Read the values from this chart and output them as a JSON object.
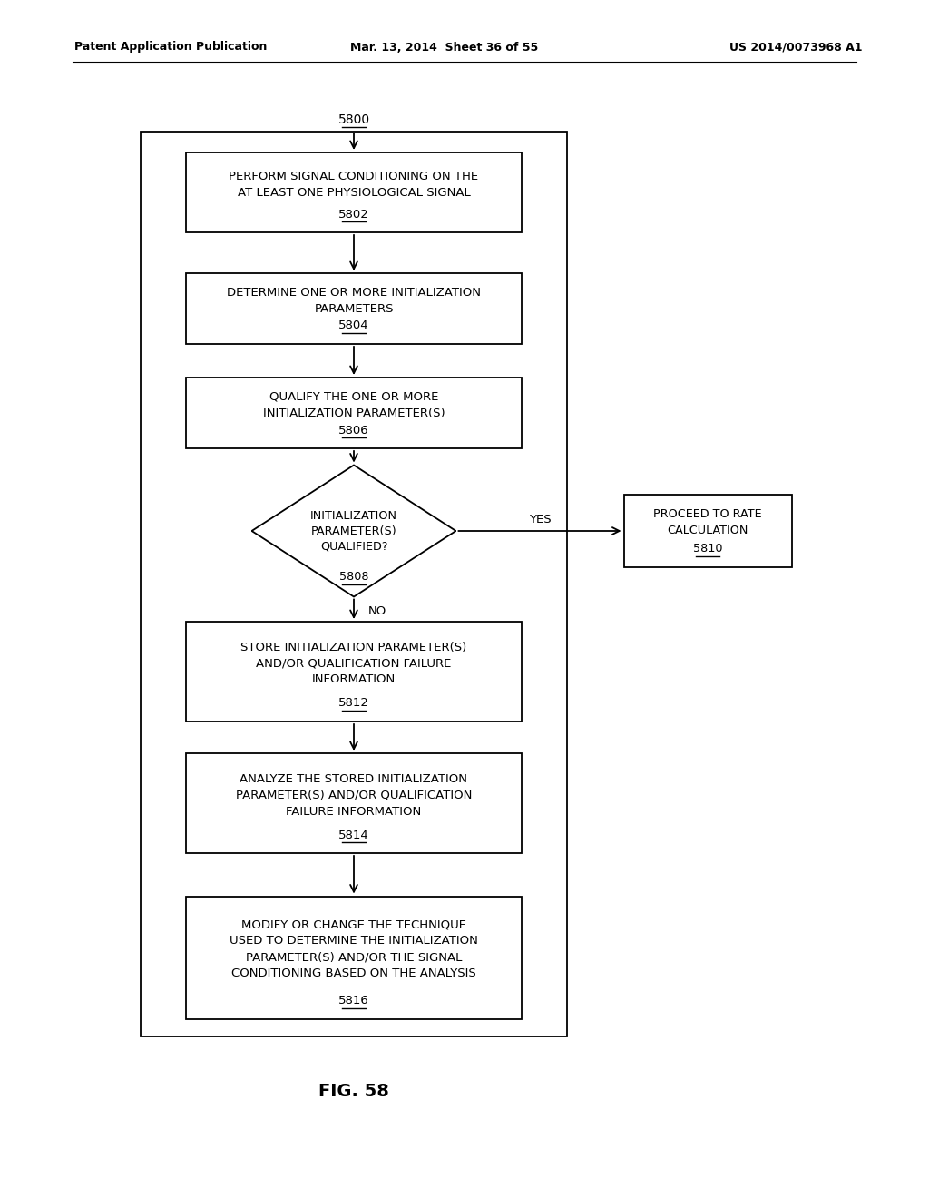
{
  "title": "FIG. 58",
  "header_left": "Patent Application Publication",
  "header_mid": "Mar. 13, 2014  Sheet 36 of 55",
  "header_right": "US 2014/0073968 A1",
  "start_label": "5800",
  "box_5802_lines": [
    "PERFORM SIGNAL CONDITIONING ON THE",
    "AT LEAST ONE PHYSIOLOGICAL SIGNAL"
  ],
  "box_5802_label": "5802",
  "box_5804_lines": [
    "DETERMINE ONE OR MORE INITIALIZATION",
    "PARAMETERS"
  ],
  "box_5804_label": "5804",
  "box_5806_lines": [
    "QUALIFY THE ONE OR MORE",
    "INITIALIZATION PARAMETER(S)"
  ],
  "box_5806_label": "5806",
  "diamond_5808_lines": [
    "INITIALIZATION",
    "PARAMETER(S)",
    "QUALIFIED?"
  ],
  "diamond_5808_label": "5808",
  "box_5810_lines": [
    "PROCEED TO RATE",
    "CALCULATION"
  ],
  "box_5810_label": "5810",
  "yes_label": "YES",
  "no_label": "NO",
  "box_5812_lines": [
    "STORE INITIALIZATION PARAMETER(S)",
    "AND/OR QUALIFICATION FAILURE",
    "INFORMATION"
  ],
  "box_5812_label": "5812",
  "box_5814_lines": [
    "ANALYZE THE STORED INITIALIZATION",
    "PARAMETER(S) AND/OR QUALIFICATION",
    "FAILURE INFORMATION"
  ],
  "box_5814_label": "5814",
  "box_5816_lines": [
    "MODIFY OR CHANGE THE TECHNIQUE",
    "USED TO DETERMINE THE INITIALIZATION",
    "PARAMETER(S) AND/OR THE SIGNAL",
    "CONDITIONING BASED ON THE ANALYSIS"
  ],
  "box_5816_label": "5816",
  "bg_color": "#ffffff",
  "text_color": "#000000"
}
